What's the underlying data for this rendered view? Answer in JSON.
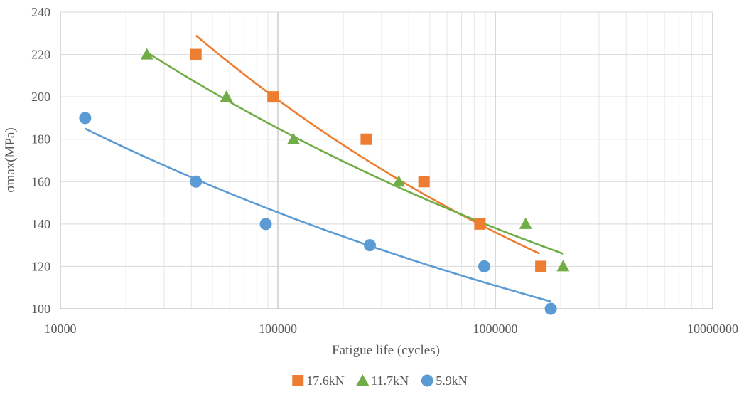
{
  "chart_data": {
    "type": "scatter",
    "title": "",
    "xlabel": "Fatigue life (cycles)",
    "ylabel": "σmax(MPa)",
    "x_scale": "log",
    "xlim": [
      10000,
      10000000
    ],
    "ylim": [
      100,
      240
    ],
    "x_ticks": [
      10000,
      100000,
      1000000,
      10000000
    ],
    "x_tick_labels": [
      "10000",
      "100000",
      "1000000",
      "10000000"
    ],
    "y_ticks": [
      100,
      120,
      140,
      160,
      180,
      200,
      220,
      240
    ],
    "y_tick_labels": [
      "100",
      "120",
      "140",
      "160",
      "180",
      "200",
      "220",
      "240"
    ],
    "grid": true,
    "legend_position": "bottom",
    "series": [
      {
        "name": "17.6kN",
        "color": "#ED7D31",
        "marker": "square",
        "points": [
          [
            42000,
            220
          ],
          [
            95000,
            200
          ],
          [
            255000,
            180
          ],
          [
            470000,
            160
          ],
          [
            850000,
            140
          ],
          [
            1620000,
            120
          ]
        ],
        "trendline": [
          [
            42000,
            229
          ],
          [
            1600000,
            126
          ]
        ]
      },
      {
        "name": "11.7kN",
        "color": "#70AD47",
        "marker": "triangle",
        "points": [
          [
            25000,
            220
          ],
          [
            58000,
            200
          ],
          [
            118000,
            180
          ],
          [
            360000,
            160
          ],
          [
            1380000,
            140
          ],
          [
            2050000,
            120
          ]
        ],
        "trendline": [
          [
            25000,
            221
          ],
          [
            2050000,
            126
          ]
        ]
      },
      {
        "name": "5.9kN",
        "color": "#5B9BD5",
        "marker": "circle",
        "points": [
          [
            13000,
            190
          ],
          [
            42000,
            160
          ],
          [
            88000,
            140
          ],
          [
            265000,
            130
          ],
          [
            890000,
            120
          ],
          [
            1800000,
            100
          ]
        ],
        "trendline": [
          [
            13000,
            185
          ],
          [
            1800000,
            103.5
          ]
        ]
      }
    ]
  }
}
